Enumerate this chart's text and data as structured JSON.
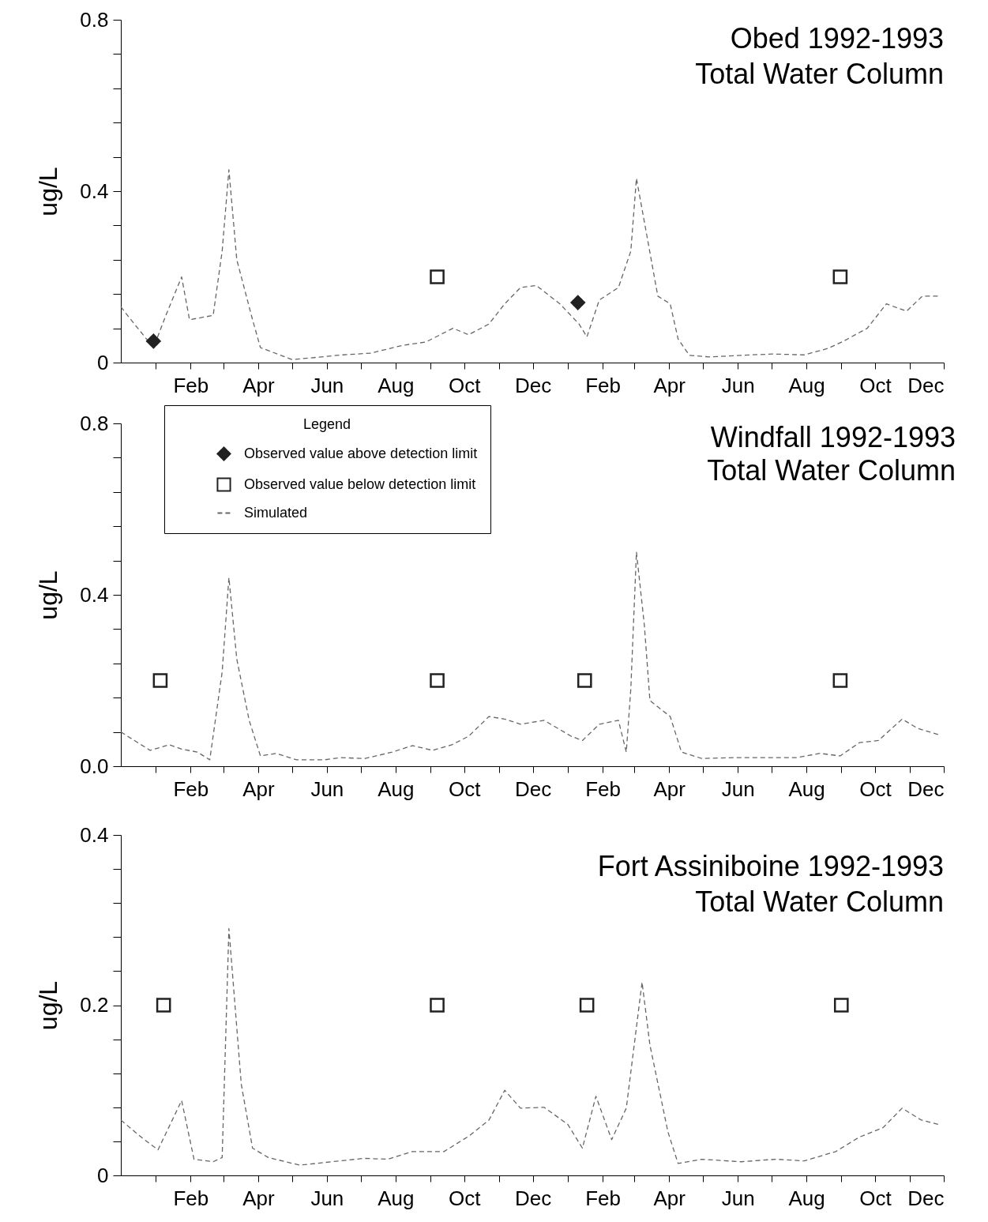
{
  "chart_data": [
    {
      "type": "line",
      "title": "Obed 1992-1993",
      "subtitle": "Total Water Column",
      "ylabel": "ug/L",
      "xlim": [
        "1991-12-01",
        "1993-12-01"
      ],
      "xticks": [
        {
          "value": "1992-01-01",
          "label": null
        },
        {
          "value": "1992-02-01",
          "label": "Feb"
        },
        {
          "value": "1992-03-01",
          "label": null
        },
        {
          "value": "1992-04-01",
          "label": "Apr"
        },
        {
          "value": "1992-05-01",
          "label": null
        },
        {
          "value": "1992-06-01",
          "label": "Jun"
        },
        {
          "value": "1992-07-01",
          "label": null
        },
        {
          "value": "1992-08-01",
          "label": "Aug"
        },
        {
          "value": "1992-09-01",
          "label": null
        },
        {
          "value": "1992-10-01",
          "label": "Oct"
        },
        {
          "value": "1992-11-01",
          "label": null
        },
        {
          "value": "1992-12-01",
          "label": "Dec"
        },
        {
          "value": "1993-01-01",
          "label": null
        },
        {
          "value": "1993-02-01",
          "label": "Feb"
        },
        {
          "value": "1993-03-01",
          "label": null
        },
        {
          "value": "1993-04-01",
          "label": "Apr"
        },
        {
          "value": "1993-05-01",
          "label": null
        },
        {
          "value": "1993-06-01",
          "label": "Jun"
        },
        {
          "value": "1993-07-01",
          "label": null
        },
        {
          "value": "1993-08-01",
          "label": "Aug"
        },
        {
          "value": "1993-09-01",
          "label": null
        },
        {
          "value": "1993-10-01",
          "label": "Oct"
        },
        {
          "value": "1993-11-01",
          "label": null
        },
        {
          "value": "1993-12-01",
          "label": "Dec"
        }
      ],
      "ylim": [
        0,
        0.8
      ],
      "yticks": [
        0,
        {
          "value": 0.08,
          "label": null
        },
        {
          "value": 0.16,
          "label": null
        },
        {
          "value": 0.24,
          "label": null
        },
        {
          "value": 0.32,
          "label": null
        },
        0.4,
        {
          "value": 0.48,
          "label": null
        },
        {
          "value": 0.56,
          "label": null
        },
        {
          "value": 0.64,
          "label": null
        },
        {
          "value": 0.72,
          "label": null
        },
        0.8
      ],
      "grid": false,
      "series": [
        {
          "line_style": "dashed",
          "marker": "none",
          "color": "#666666",
          "x": [
            "1991-12-01",
            "1991-12-13",
            "1991-12-30",
            "1992-01-10",
            "1992-01-24",
            "1992-01-31",
            "1992-02-21",
            "1992-02-29",
            "1992-03-06",
            "1992-03-13",
            "1992-03-27",
            "1992-04-03",
            "1992-04-13",
            "1992-05-01",
            "1992-05-22",
            "1992-06-15",
            "1992-07-10",
            "1992-08-07",
            "1992-08-28",
            "1992-09-21",
            "1992-10-05",
            "1992-10-23",
            "1992-11-06",
            "1992-11-20",
            "1992-12-04",
            "1992-12-25",
            "1993-01-11",
            "1993-01-18",
            "1993-01-29",
            "1993-02-15",
            "1993-02-26",
            "1993-03-03",
            "1993-03-12",
            "1993-03-22",
            "1993-04-02",
            "1993-04-09",
            "1993-04-19",
            "1993-05-07",
            "1993-06-04",
            "1993-07-02",
            "1993-07-30",
            "1993-08-20",
            "1993-09-03",
            "1993-09-24",
            "1993-10-11",
            "1993-10-29",
            "1993-11-12",
            "1993-11-26"
          ],
          "values": [
            0.13,
            0.09,
            0.035,
            0.11,
            0.2,
            0.1,
            0.11,
            0.26,
            0.45,
            0.24,
            0.1,
            0.035,
            0.025,
            0.007,
            0.012,
            0.018,
            0.022,
            0.04,
            0.048,
            0.08,
            0.065,
            0.09,
            0.137,
            0.175,
            0.18,
            0.137,
            0.09,
            0.06,
            0.146,
            0.175,
            0.26,
            0.43,
            0.3,
            0.155,
            0.137,
            0.055,
            0.017,
            0.013,
            0.017,
            0.02,
            0.018,
            0.033,
            0.05,
            0.08,
            0.137,
            0.12,
            0.155,
            0.155
          ]
        },
        {
          "type": "scatter",
          "marker": "diamond",
          "color": "#222222",
          "x": [
            "1991-12-30",
            "1993-01-10"
          ],
          "values": [
            0.05,
            0.14
          ]
        },
        {
          "type": "scatter",
          "marker": "square",
          "color": "#222222",
          "x": [
            "1992-09-07",
            "1993-08-31"
          ],
          "values": [
            0.2,
            0.2
          ]
        }
      ]
    },
    {
      "type": "line",
      "title": "Windfall 1992-1993",
      "subtitle": "Total Water Column",
      "ylabel": "ug/L",
      "legend_title": "Legend",
      "legend": "top left",
      "xlim": [
        "1991-12-01",
        "1993-12-01"
      ],
      "xticks": [
        {
          "value": "1992-01-01",
          "label": null
        },
        {
          "value": "1992-02-01",
          "label": "Feb"
        },
        {
          "value": "1992-03-01",
          "label": null
        },
        {
          "value": "1992-04-01",
          "label": "Apr"
        },
        {
          "value": "1992-05-01",
          "label": null
        },
        {
          "value": "1992-06-01",
          "label": "Jun"
        },
        {
          "value": "1992-07-01",
          "label": null
        },
        {
          "value": "1992-08-01",
          "label": "Aug"
        },
        {
          "value": "1992-09-01",
          "label": null
        },
        {
          "value": "1992-10-01",
          "label": "Oct"
        },
        {
          "value": "1992-11-01",
          "label": null
        },
        {
          "value": "1992-12-01",
          "label": "Dec"
        },
        {
          "value": "1993-01-01",
          "label": null
        },
        {
          "value": "1993-02-01",
          "label": "Feb"
        },
        {
          "value": "1993-03-01",
          "label": null
        },
        {
          "value": "1993-04-01",
          "label": "Apr"
        },
        {
          "value": "1993-05-01",
          "label": null
        },
        {
          "value": "1993-06-01",
          "label": "Jun"
        },
        {
          "value": "1993-07-01",
          "label": null
        },
        {
          "value": "1993-08-01",
          "label": "Aug"
        },
        {
          "value": "1993-09-01",
          "label": null
        },
        {
          "value": "1993-10-01",
          "label": "Oct"
        },
        {
          "value": "1993-11-01",
          "label": null
        },
        {
          "value": "1993-12-01",
          "label": "Dec"
        }
      ],
      "ylim": [
        0,
        0.8
      ],
      "yticks": [
        {
          "value": 0,
          "label": "0.0"
        },
        {
          "value": 0.08,
          "label": null
        },
        {
          "value": 0.16,
          "label": null
        },
        {
          "value": 0.24,
          "label": null
        },
        {
          "value": 0.32,
          "label": null
        },
        0.4,
        {
          "value": 0.48,
          "label": null
        },
        {
          "value": 0.56,
          "label": null
        },
        {
          "value": 0.64,
          "label": null
        },
        {
          "value": 0.72,
          "label": null
        },
        0.8
      ],
      "grid": false,
      "series": [
        {
          "type": "scatter",
          "name": "Observed value above detection limit",
          "marker": "diamond",
          "color": "#222222"
        },
        {
          "type": "scatter",
          "name": "Observed value below detection limit",
          "marker": "square",
          "color": "#222222",
          "x": [
            "1992-01-05",
            "1992-09-07",
            "1993-01-16",
            "1993-08-31"
          ],
          "values": [
            0.2,
            0.2,
            0.2,
            0.2
          ]
        },
        {
          "name": "Simulated",
          "line_style": "dashed",
          "marker": "none",
          "color": "#666666",
          "x": [
            "1991-12-01",
            "1991-12-27",
            "1992-01-13",
            "1992-01-24",
            "1992-02-07",
            "1992-02-18",
            "1992-02-29",
            "1992-03-06",
            "1992-03-13",
            "1992-03-24",
            "1992-04-03",
            "1992-04-17",
            "1992-05-05",
            "1992-05-30",
            "1992-06-13",
            "1992-07-05",
            "1992-07-29",
            "1992-08-16",
            "1992-09-03",
            "1992-09-20",
            "1992-10-05",
            "1992-10-23",
            "1992-11-06",
            "1992-11-20",
            "1992-12-11",
            "1993-01-04",
            "1993-01-14",
            "1993-01-29",
            "1993-02-15",
            "1993-02-22",
            "1993-02-26",
            "1993-03-03",
            "1993-03-10",
            "1993-03-15",
            "1993-04-02",
            "1993-04-12",
            "1993-04-30",
            "1993-05-28",
            "1993-06-25",
            "1993-07-23",
            "1993-08-13",
            "1993-08-31",
            "1993-09-17",
            "1993-10-04",
            "1993-10-25",
            "1993-11-08",
            "1993-11-26"
          ],
          "values": [
            0.08,
            0.037,
            0.05,
            0.04,
            0.033,
            0.015,
            0.22,
            0.44,
            0.25,
            0.107,
            0.024,
            0.03,
            0.015,
            0.015,
            0.02,
            0.018,
            0.033,
            0.048,
            0.037,
            0.05,
            0.07,
            0.116,
            0.11,
            0.098,
            0.107,
            0.07,
            0.06,
            0.098,
            0.107,
            0.033,
            0.18,
            0.5,
            0.33,
            0.153,
            0.116,
            0.033,
            0.018,
            0.02,
            0.02,
            0.02,
            0.03,
            0.024,
            0.055,
            0.06,
            0.11,
            0.088,
            0.074
          ]
        }
      ]
    },
    {
      "type": "line",
      "title": "Fort Assiniboine 1992-1993",
      "subtitle": "Total Water Column",
      "ylabel": "ug/L",
      "xlim": [
        "1991-12-01",
        "1993-12-01"
      ],
      "xticks": [
        {
          "value": "1992-01-01",
          "label": null
        },
        {
          "value": "1992-02-01",
          "label": "Feb"
        },
        {
          "value": "1992-03-01",
          "label": null
        },
        {
          "value": "1992-04-01",
          "label": "Apr"
        },
        {
          "value": "1992-05-01",
          "label": null
        },
        {
          "value": "1992-06-01",
          "label": "Jun"
        },
        {
          "value": "1992-07-01",
          "label": null
        },
        {
          "value": "1992-08-01",
          "label": "Aug"
        },
        {
          "value": "1992-09-01",
          "label": null
        },
        {
          "value": "1992-10-01",
          "label": "Oct"
        },
        {
          "value": "1992-11-01",
          "label": null
        },
        {
          "value": "1992-12-01",
          "label": "Dec"
        },
        {
          "value": "1993-01-01",
          "label": null
        },
        {
          "value": "1993-02-01",
          "label": "Feb"
        },
        {
          "value": "1993-03-01",
          "label": null
        },
        {
          "value": "1993-04-01",
          "label": "Apr"
        },
        {
          "value": "1993-05-01",
          "label": null
        },
        {
          "value": "1993-06-01",
          "label": "Jun"
        },
        {
          "value": "1993-07-01",
          "label": null
        },
        {
          "value": "1993-08-01",
          "label": "Aug"
        },
        {
          "value": "1993-09-01",
          "label": null
        },
        {
          "value": "1993-10-01",
          "label": "Oct"
        },
        {
          "value": "1993-11-01",
          "label": null
        },
        {
          "value": "1993-12-01",
          "label": "Dec"
        }
      ],
      "ylim": [
        0,
        0.4
      ],
      "yticks": [
        0,
        {
          "value": 0.04,
          "label": null
        },
        {
          "value": 0.08,
          "label": null
        },
        {
          "value": 0.12,
          "label": null
        },
        {
          "value": 0.16,
          "label": null
        },
        0.2,
        {
          "value": 0.24,
          "label": null
        },
        {
          "value": 0.28,
          "label": null
        },
        {
          "value": 0.32,
          "label": null
        },
        {
          "value": 0.36,
          "label": null
        },
        0.4
      ],
      "grid": false,
      "series": [
        {
          "line_style": "dashed",
          "marker": "none",
          "color": "#666666",
          "x": [
            "1991-12-01",
            "1991-12-20",
            "1992-01-03",
            "1992-01-24",
            "1992-02-04",
            "1992-02-21",
            "1992-02-29",
            "1992-03-06",
            "1992-03-17",
            "1992-03-27",
            "1992-04-10",
            "1992-05-08",
            "1992-06-05",
            "1992-07-04",
            "1992-07-25",
            "1992-08-16",
            "1992-09-13",
            "1992-10-05",
            "1992-10-23",
            "1992-11-06",
            "1992-11-20",
            "1992-12-11",
            "1993-01-01",
            "1993-01-14",
            "1993-01-26",
            "1993-02-09",
            "1993-02-22",
            "1993-03-08",
            "1993-03-15",
            "1993-03-31",
            "1993-04-09",
            "1993-04-30",
            "1993-06-04",
            "1993-07-05",
            "1993-07-30",
            "1993-08-27",
            "1993-09-17",
            "1993-10-08",
            "1993-10-25",
            "1993-11-11",
            "1993-11-26"
          ],
          "values": [
            0.065,
            0.044,
            0.03,
            0.088,
            0.019,
            0.016,
            0.021,
            0.29,
            0.107,
            0.032,
            0.021,
            0.012,
            0.016,
            0.02,
            0.019,
            0.028,
            0.028,
            0.046,
            0.065,
            0.1,
            0.079,
            0.08,
            0.06,
            0.032,
            0.093,
            0.042,
            0.079,
            0.227,
            0.153,
            0.051,
            0.014,
            0.019,
            0.016,
            0.019,
            0.017,
            0.028,
            0.045,
            0.056,
            0.079,
            0.065,
            0.06
          ]
        },
        {
          "type": "scatter",
          "marker": "square",
          "color": "#222222",
          "x": [
            "1992-01-08",
            "1992-09-07",
            "1993-01-18",
            "1993-09-01"
          ],
          "values": [
            0.2,
            0.2,
            0.2,
            0.2
          ]
        }
      ]
    }
  ]
}
